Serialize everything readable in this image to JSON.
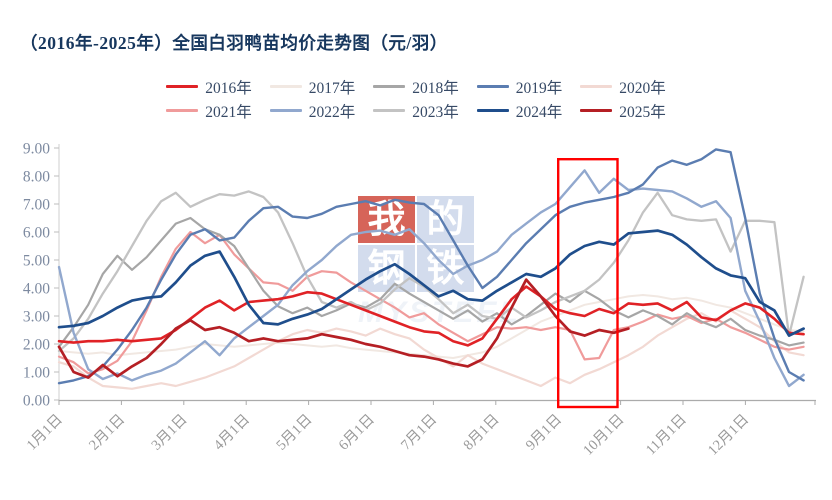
{
  "title": "（2016年-2025年）全国白羽鸭苗均价走势图（元/羽）",
  "watermark": {
    "blocks": [
      {
        "char": "我",
        "bg": "#d0493d"
      },
      {
        "char": "的",
        "bg": "#ccd7eb"
      },
      {
        "char": "钢",
        "bg": "#ccd7eb"
      },
      {
        "char": "铁",
        "bg": "#ccd7eb"
      }
    ],
    "subtext": "MYSTEEL"
  },
  "chart_data": {
    "type": "line",
    "title": "（2016年-2025年）全国白羽鸭苗均价走势图（元/羽）",
    "unit": "元/羽",
    "grid": false,
    "legend_position": "top",
    "ylim": [
      0,
      9
    ],
    "y_tick_labels": [
      "0.00",
      "1.00",
      "2.00",
      "3.00",
      "4.00",
      "5.00",
      "6.00",
      "7.00",
      "8.00",
      "9.00"
    ],
    "x_tick_labels": [
      "1月1日",
      "2月1日",
      "3月1日",
      "4月1日",
      "5月1日",
      "6月1日",
      "7月1日",
      "8月1日",
      "9月1日",
      "10月1日",
      "11月1日",
      "12月1日"
    ],
    "x_unit": "weekly points, Jan 1 to year end",
    "highlight_box": {
      "x_start_month": 8.0,
      "x_end_month": 8.95,
      "y_min": 0,
      "y_max": 8.6,
      "color": "#ff0000"
    },
    "axis_colors": {
      "y_label": "#7d8aa0",
      "x_label": "#9a9a9a",
      "axis_line": "#ababab"
    },
    "series": [
      {
        "name": "2017年",
        "color": "#f1e8e2",
        "width": 2.0,
        "values": [
          1.75,
          1.7,
          1.65,
          1.7,
          1.6,
          1.65,
          1.7,
          1.75,
          1.8,
          1.9,
          2.0,
          1.95,
          1.9,
          1.95,
          2.0,
          2.05,
          2.0,
          1.95,
          1.9,
          1.95,
          1.85,
          1.8,
          1.75,
          1.7,
          1.65,
          1.6,
          1.55,
          1.5,
          1.6,
          1.7,
          1.9,
          2.2,
          2.5,
          2.8,
          3.0,
          3.2,
          3.4,
          3.5,
          3.6,
          3.7,
          3.75,
          3.7,
          3.6,
          3.65,
          3.55,
          3.4,
          3.3,
          3.1,
          2.9,
          2.7,
          2.5,
          2.45
        ]
      },
      {
        "name": "2020年",
        "color": "#f2d9d3",
        "width": 2.2,
        "values": [
          1.35,
          1.2,
          0.8,
          0.5,
          0.45,
          0.4,
          0.5,
          0.6,
          0.5,
          0.65,
          0.8,
          1.0,
          1.2,
          1.5,
          1.8,
          2.1,
          2.35,
          2.5,
          2.4,
          2.55,
          2.45,
          2.3,
          2.55,
          2.35,
          2.2,
          1.8,
          1.5,
          1.2,
          1.6,
          1.3,
          1.1,
          0.9,
          0.7,
          0.5,
          0.8,
          0.6,
          0.9,
          1.1,
          1.35,
          1.6,
          1.9,
          2.3,
          2.6,
          2.9,
          3.1,
          2.8,
          3.2,
          2.9,
          2.6,
          2.1,
          1.7,
          1.6
        ]
      },
      {
        "name": "2021年",
        "color": "#f09b9b",
        "width": 2.2,
        "values": [
          1.55,
          1.35,
          0.95,
          1.1,
          1.4,
          2.1,
          3.2,
          4.4,
          5.4,
          6.0,
          5.6,
          5.9,
          5.2,
          4.7,
          4.2,
          4.15,
          3.9,
          4.4,
          4.6,
          4.55,
          4.2,
          3.9,
          3.6,
          3.3,
          2.95,
          3.1,
          2.7,
          2.4,
          2.1,
          2.35,
          2.6,
          2.55,
          2.6,
          2.5,
          2.6,
          2.5,
          1.45,
          1.5,
          2.5,
          2.6,
          2.8,
          3.05,
          2.9,
          3.0,
          2.75,
          2.9,
          2.6,
          2.4,
          2.15,
          1.9,
          1.8,
          1.9
        ]
      },
      {
        "name": "2018年",
        "color": "#a6a6a6",
        "width": 2.2,
        "values": [
          1.9,
          2.6,
          3.4,
          4.5,
          5.15,
          4.65,
          5.1,
          5.7,
          6.3,
          6.5,
          6.1,
          5.9,
          5.5,
          4.7,
          3.9,
          3.35,
          3.1,
          3.3,
          3.0,
          3.2,
          3.45,
          3.3,
          3.6,
          4.15,
          3.8,
          3.5,
          3.2,
          2.9,
          3.2,
          2.8,
          3.1,
          2.7,
          3.0,
          3.4,
          3.8,
          3.5,
          3.9,
          3.6,
          3.2,
          2.95,
          3.2,
          3.0,
          2.7,
          3.1,
          2.8,
          2.6,
          2.9,
          2.5,
          2.3,
          2.15,
          1.95,
          2.05
        ]
      },
      {
        "name": "2023年",
        "color": "#c3c3c3",
        "width": 2.3,
        "values": [
          1.75,
          2.2,
          2.9,
          3.8,
          4.6,
          5.5,
          6.4,
          7.1,
          7.4,
          6.9,
          7.15,
          7.35,
          7.3,
          7.45,
          7.25,
          6.7,
          5.6,
          4.4,
          3.5,
          3.3,
          3.5,
          3.2,
          3.45,
          3.95,
          4.35,
          4.05,
          3.6,
          3.1,
          3.4,
          3.0,
          2.9,
          3.3,
          2.95,
          3.2,
          3.5,
          3.7,
          3.9,
          4.3,
          4.9,
          5.7,
          6.7,
          7.4,
          6.6,
          6.45,
          6.4,
          6.45,
          5.3,
          6.4,
          6.4,
          6.35,
          2.3,
          4.4
        ]
      },
      {
        "name": "2022年",
        "color": "#91a8ce",
        "width": 2.4,
        "values": [
          4.75,
          2.4,
          1.1,
          0.75,
          0.95,
          0.7,
          0.9,
          1.05,
          1.3,
          1.7,
          2.1,
          1.6,
          2.2,
          2.6,
          3.0,
          3.4,
          4.1,
          4.6,
          5.0,
          5.5,
          5.9,
          6.0,
          6.05,
          5.9,
          6.1,
          5.6,
          5.0,
          4.5,
          4.8,
          5.0,
          5.3,
          5.9,
          6.3,
          6.7,
          7.0,
          7.6,
          8.2,
          7.4,
          7.9,
          7.5,
          7.55,
          7.5,
          7.45,
          7.2,
          6.9,
          7.1,
          6.5,
          3.9,
          2.8,
          1.5,
          0.5,
          0.9
        ]
      },
      {
        "name": "2019年",
        "color": "#5b7db1",
        "width": 2.4,
        "values": [
          0.6,
          0.7,
          0.85,
          1.2,
          1.8,
          2.5,
          3.3,
          4.3,
          5.2,
          5.9,
          6.1,
          5.7,
          5.8,
          6.4,
          6.85,
          6.9,
          6.55,
          6.5,
          6.65,
          6.9,
          7.0,
          7.1,
          6.95,
          7.15,
          7.05,
          7.0,
          6.6,
          5.7,
          4.8,
          4.0,
          4.4,
          5.0,
          5.6,
          6.1,
          6.6,
          6.9,
          7.05,
          7.15,
          7.25,
          7.4,
          7.7,
          8.3,
          8.55,
          8.4,
          8.6,
          8.95,
          8.85,
          6.5,
          3.8,
          2.2,
          1.0,
          0.7
        ]
      },
      {
        "name": "2016年",
        "color": "#e02226",
        "width": 2.6,
        "values": [
          2.1,
          2.05,
          2.1,
          2.1,
          2.15,
          2.1,
          2.15,
          2.2,
          2.5,
          2.9,
          3.3,
          3.55,
          3.2,
          3.5,
          3.55,
          3.6,
          3.7,
          3.85,
          3.8,
          3.6,
          3.4,
          3.2,
          3.0,
          2.8,
          2.6,
          2.45,
          2.4,
          2.1,
          1.95,
          2.2,
          2.9,
          3.6,
          4.05,
          3.7,
          3.25,
          3.1,
          3.0,
          3.25,
          3.1,
          3.45,
          3.4,
          3.45,
          3.2,
          3.5,
          2.95,
          2.85,
          3.2,
          3.45,
          3.3,
          2.9,
          2.4,
          2.35
        ]
      },
      {
        "name": "2024年",
        "color": "#1f4e8c",
        "width": 2.7,
        "values": [
          2.6,
          2.65,
          2.75,
          3.0,
          3.3,
          3.55,
          3.65,
          3.7,
          4.2,
          4.8,
          5.15,
          5.3,
          4.4,
          3.4,
          2.75,
          2.7,
          2.9,
          3.05,
          3.25,
          3.6,
          3.95,
          4.3,
          4.6,
          4.85,
          4.5,
          4.1,
          3.7,
          3.9,
          3.6,
          3.55,
          3.9,
          4.2,
          4.5,
          4.4,
          4.7,
          5.2,
          5.5,
          5.65,
          5.55,
          5.95,
          6.0,
          6.05,
          5.9,
          5.55,
          5.1,
          4.7,
          4.45,
          4.35,
          3.5,
          3.2,
          2.3,
          2.55
        ]
      },
      {
        "name": "2025年",
        "color": "#b51f24",
        "width": 2.7,
        "values": [
          1.9,
          1.0,
          0.8,
          1.25,
          0.85,
          1.2,
          1.5,
          2.0,
          2.55,
          2.85,
          2.5,
          2.6,
          2.4,
          2.1,
          2.2,
          2.1,
          2.15,
          2.2,
          2.35,
          2.25,
          2.15,
          2.0,
          1.9,
          1.75,
          1.6,
          1.55,
          1.45,
          1.3,
          1.2,
          1.45,
          2.2,
          3.3,
          4.3,
          3.7,
          3.0,
          2.45,
          2.3,
          2.5,
          2.4,
          2.55
        ]
      }
    ],
    "legend_order": [
      "2016年",
      "2017年",
      "2018年",
      "2019年",
      "2020年",
      "2021年",
      "2022年",
      "2023年",
      "2024年",
      "2025年"
    ]
  }
}
